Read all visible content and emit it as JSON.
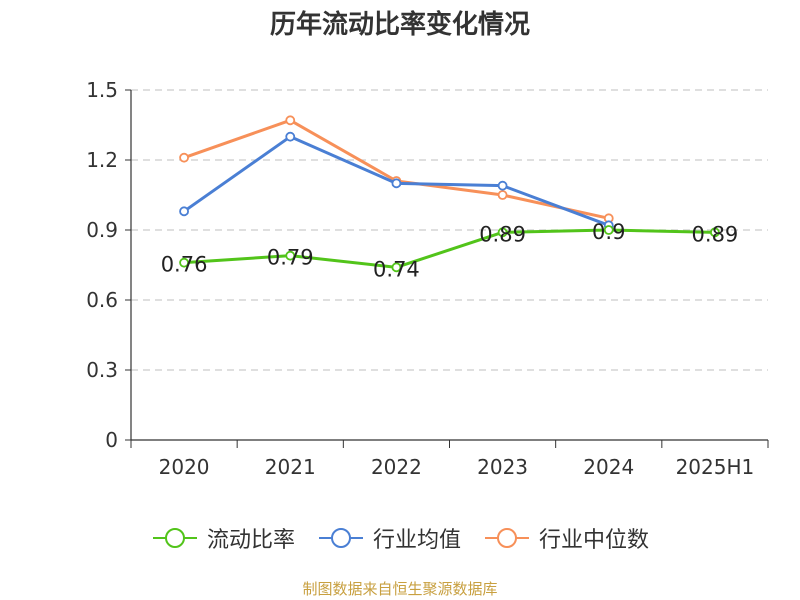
{
  "title": "历年流动比率变化情况",
  "source": "制图数据来自恒生聚源数据库",
  "chart_data": {
    "type": "line",
    "title": "历年流动比率变化情况",
    "categories": [
      "2020",
      "2021",
      "2022",
      "2023",
      "2024",
      "2025H1"
    ],
    "y_ticks": [
      "0",
      "0.3",
      "0.6",
      "0.9",
      "1.2",
      "1.5"
    ],
    "ylim": [
      0,
      1.5
    ],
    "grid": true,
    "legend_position": "bottom",
    "series": [
      {
        "name": "流动比率",
        "color": "#52c41a",
        "values": [
          0.76,
          0.79,
          0.74,
          0.89,
          0.9,
          0.89
        ],
        "labels": [
          "0.76",
          "0.79",
          "0.74",
          "0.89",
          "0.9",
          "0.89"
        ]
      },
      {
        "name": "行业均值",
        "color": "#4a7fd4",
        "values": [
          0.98,
          1.3,
          1.1,
          1.09,
          0.92,
          null
        ]
      },
      {
        "name": "行业中位数",
        "color": "#f79059",
        "values": [
          1.21,
          1.37,
          1.11,
          1.05,
          0.95,
          null
        ]
      }
    ]
  }
}
